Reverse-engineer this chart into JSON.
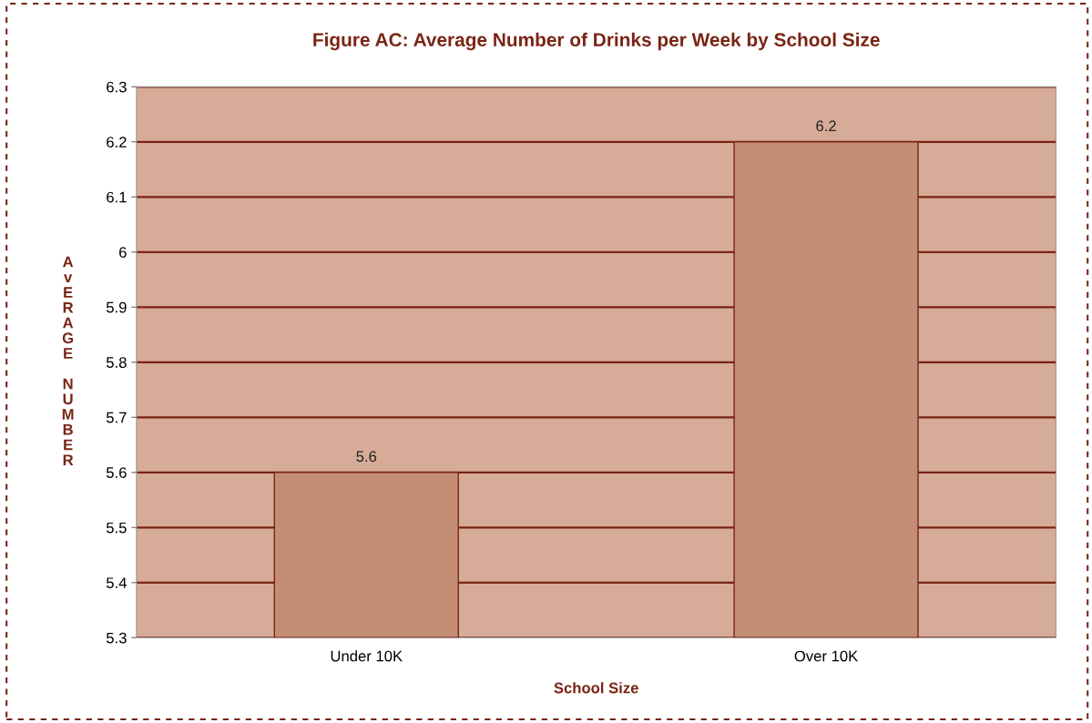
{
  "chart_data": {
    "type": "bar",
    "title": "Figure AC: Average Number of Drinks per Week by School Size",
    "xlabel": "School Size",
    "ylabel": "AvERAGE NUMBER",
    "categories": [
      "Under 10K",
      "Over 10K"
    ],
    "series": [
      {
        "color": "#c48e76",
        "values": [
          5.6,
          6.2
        ]
      }
    ],
    "ylim": [
      5.3,
      6.3
    ],
    "yticks": [
      {
        "value": 5.3,
        "label": "5.3"
      },
      {
        "value": 5.4,
        "label": "5.4"
      },
      {
        "value": 5.5,
        "label": "5.5"
      },
      {
        "value": 5.6,
        "label": "5.6"
      },
      {
        "value": 5.7,
        "label": "5.7"
      },
      {
        "value": 5.8,
        "label": "5.8"
      },
      {
        "value": 5.9,
        "label": "5.9"
      },
      {
        "value": 6,
        "label": "6"
      },
      {
        "value": 6.1,
        "label": "6.1"
      },
      {
        "value": 6.2,
        "label": "6.2"
      },
      {
        "value": 6.3,
        "label": "6.3"
      }
    ],
    "grid": "y",
    "data_labels": true
  }
}
